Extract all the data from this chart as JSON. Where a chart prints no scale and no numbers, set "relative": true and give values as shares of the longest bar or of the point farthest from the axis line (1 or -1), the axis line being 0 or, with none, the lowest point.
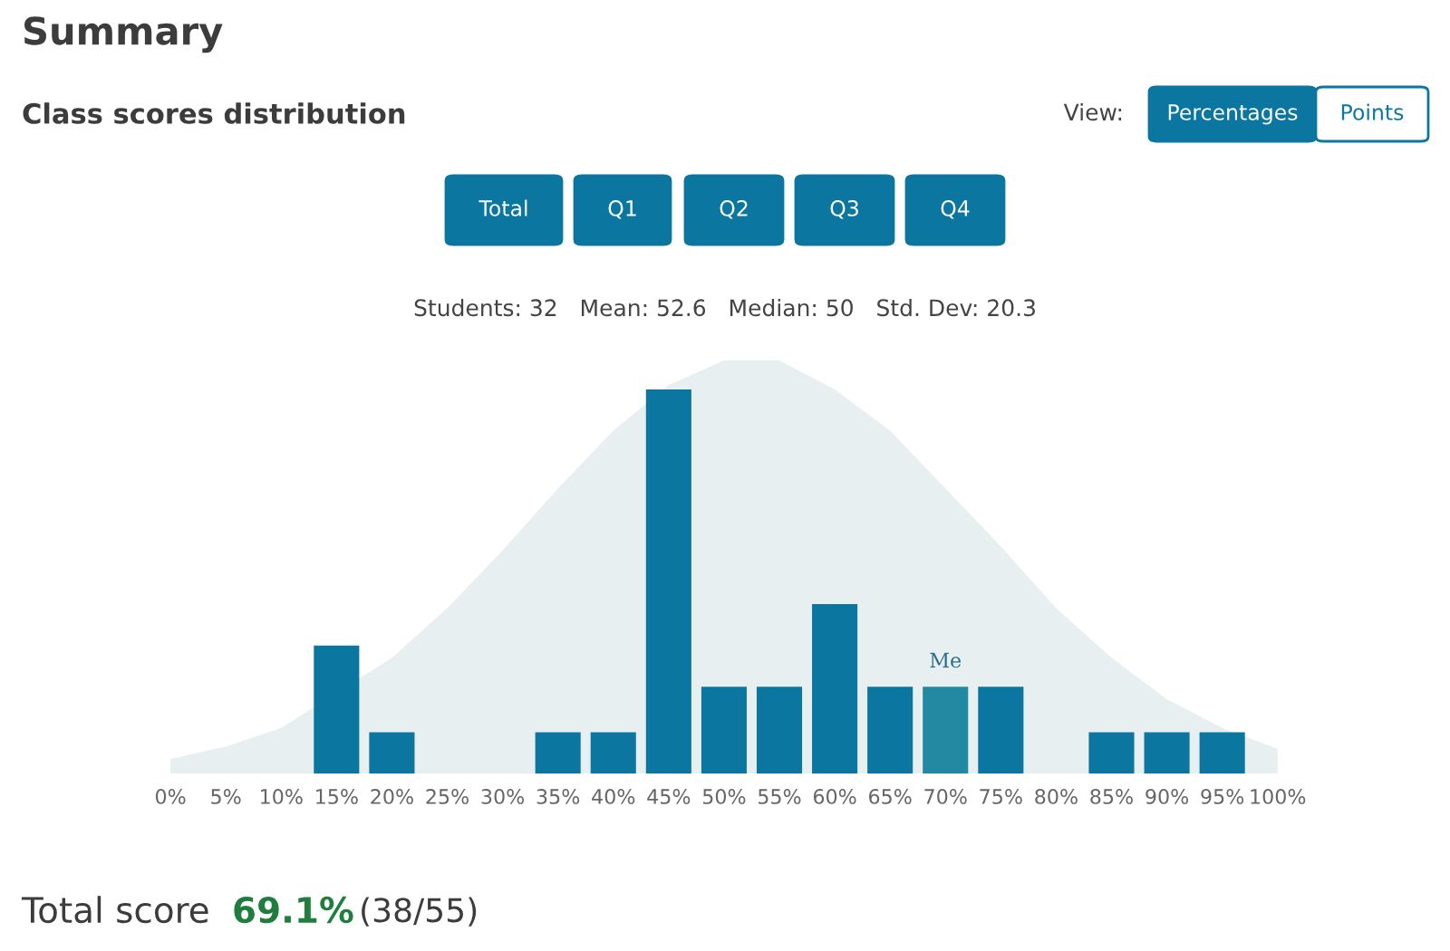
{
  "chart_data": {
    "type": "bar",
    "title": "Summary",
    "subtitle": "Class scores distribution",
    "categories": [
      "0%",
      "5%",
      "10%",
      "15%",
      "20%",
      "25%",
      "30%",
      "35%",
      "40%",
      "45%",
      "50%",
      "55%",
      "60%",
      "65%",
      "70%",
      "75%",
      "80%",
      "85%",
      "90%",
      "95%",
      "100%"
    ],
    "relative": true,
    "tick_labels": "x",
    "series": [
      {
        "type": "area",
        "color": "#e7eff1",
        "values": [
          0.035,
          0.065,
          0.11,
          null,
          0.28,
          0.4,
          0.54,
          0.69,
          0.83,
          0.94,
          1,
          1,
          0.93,
          0.83,
          0.69,
          0.55,
          0.4,
          0.28,
          0.18,
          0.11,
          0.06
        ]
      },
      {
        "colors": [
          "#0b76a0",
          "#0b76a0",
          "#0b76a0",
          "#0b76a0",
          "#0b76a0",
          "#0b76a0",
          "#0b76a0",
          "#0b76a0",
          "#0b76a0",
          "#0b76a0",
          "#0b76a0",
          "#0b76a0",
          "#0b76a0",
          "#0b76a0",
          "#2389a3",
          "#0b76a0",
          "#0b76a0",
          "#0b76a0",
          "#0b76a0",
          "#0b76a0",
          "#0b76a0"
        ],
        "values": [
          0,
          0,
          0,
          0.31,
          0.1,
          0,
          0,
          0.1,
          0.1,
          0.93,
          0.21,
          0.21,
          0.41,
          0.21,
          0.21,
          0.21,
          0,
          0.1,
          0.1,
          0.1,
          0
        ]
      }
    ],
    "annotations": [
      "View:",
      "Percentages",
      "Points",
      "Total",
      "Q1",
      "Q2",
      "Q3",
      "Q4",
      "Students: 32   Mean: 52.6   Median: 50   Std. Dev: 20.3",
      {
        "text": "Me",
        "x": "70%",
        "y": 0.21
      },
      "Total score",
      "69.1%",
      "(38/55)"
    ]
  }
}
